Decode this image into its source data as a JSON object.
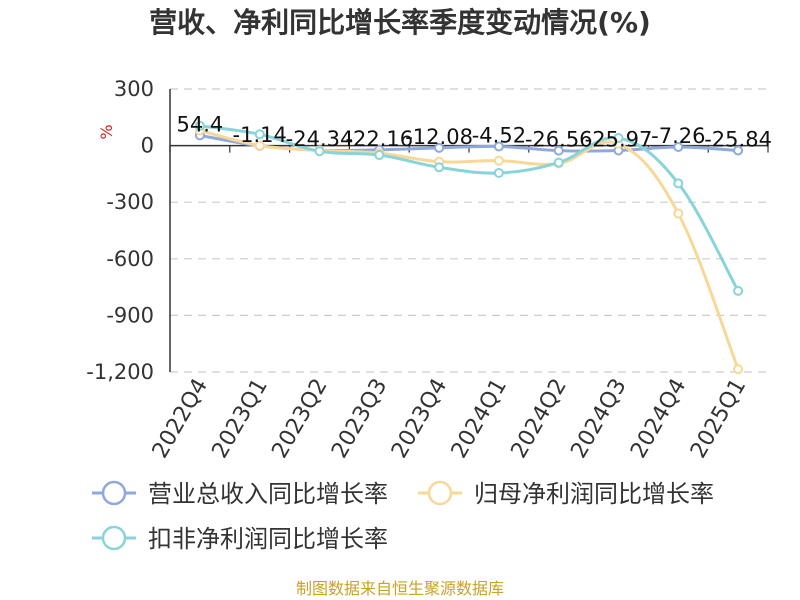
{
  "chart_data": {
    "type": "line",
    "title": "营收、净利同比增长率季度变动情况(%)",
    "ylabel": "%",
    "categories": [
      "2022Q4",
      "2023Q1",
      "2023Q2",
      "2023Q3",
      "2023Q4",
      "2024Q1",
      "2024Q2",
      "2024Q3",
      "2024Q4",
      "2025Q1"
    ],
    "ylim": [
      -1200,
      300
    ],
    "yticks": [
      300,
      0,
      -300,
      -600,
      -900,
      -1200
    ],
    "ytick_labels": [
      "300",
      "0",
      "-300",
      "-600",
      "-900",
      "-1,200"
    ],
    "grid": true,
    "legend_position": "bottom",
    "series": [
      {
        "name": "营业总收入同比增长率",
        "color": "#8fa9dc",
        "values": [
          54.4,
          -1.14,
          -24.34,
          -22.16,
          -12.08,
          -4.52,
          -26.56,
          -25.97,
          -7.26,
          -25.84
        ],
        "labels": [
          "54.4",
          "-1.14",
          "-24.34",
          "-22.16",
          "-12.08",
          "-4.52",
          "-26.56",
          "-25.97",
          "-7.26",
          "-25.84"
        ]
      },
      {
        "name": "归母净利润同比增长率",
        "color": "#f8d898",
        "values": [
          80,
          0,
          -25,
          -40,
          -85,
          -80,
          -95,
          10,
          -360,
          -1185
        ]
      },
      {
        "name": "扣非净利润同比增长率",
        "color": "#88d4d8",
        "values": [
          105,
          60,
          -30,
          -50,
          -115,
          -145,
          -90,
          40,
          -200,
          -770
        ]
      }
    ]
  },
  "source": "制图数据来自恒生聚源数据库"
}
